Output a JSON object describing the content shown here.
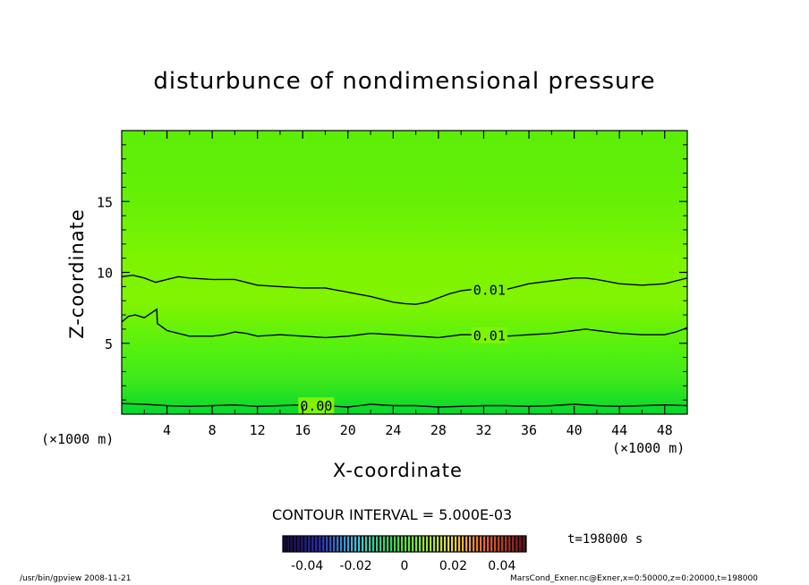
{
  "chart_data": {
    "type": "contour",
    "title": "disturbunce of nondimensional pressure",
    "xlabel": "X-coordinate",
    "ylabel": "Z-coordinate",
    "x_unit": "(×1000 m)",
    "y_unit": "(×1000 m)",
    "xlim": [
      0,
      50
    ],
    "ylim": [
      0,
      20
    ],
    "x_ticks": [
      4,
      8,
      12,
      16,
      20,
      24,
      28,
      32,
      36,
      40,
      44,
      48
    ],
    "y_ticks": [
      5,
      10,
      15
    ],
    "contours": [
      {
        "level": 0.01,
        "label": "0.01",
        "label_x": 32.5,
        "points": [
          [
            0,
            9.7
          ],
          [
            1,
            9.8
          ],
          [
            2,
            9.6
          ],
          [
            3,
            9.3
          ],
          [
            4,
            9.5
          ],
          [
            5,
            9.7
          ],
          [
            6,
            9.6
          ],
          [
            8,
            9.5
          ],
          [
            10,
            9.5
          ],
          [
            12,
            9.1
          ],
          [
            14,
            9.0
          ],
          [
            16,
            8.9
          ],
          [
            18,
            8.9
          ],
          [
            20,
            8.6
          ],
          [
            22,
            8.3
          ],
          [
            24,
            7.9
          ],
          [
            25,
            7.8
          ],
          [
            26,
            7.75
          ],
          [
            27,
            7.9
          ],
          [
            28,
            8.2
          ],
          [
            29,
            8.5
          ],
          [
            30,
            8.7
          ],
          [
            31,
            8.8
          ],
          [
            32,
            8.8
          ],
          [
            34,
            8.8
          ],
          [
            36,
            9.2
          ],
          [
            38,
            9.4
          ],
          [
            40,
            9.6
          ],
          [
            41,
            9.6
          ],
          [
            42,
            9.5
          ],
          [
            44,
            9.2
          ],
          [
            46,
            9.1
          ],
          [
            48,
            9.2
          ],
          [
            49,
            9.4
          ],
          [
            50,
            9.6
          ]
        ]
      },
      {
        "level": 0.01,
        "label": "0.01",
        "label_x": 32.5,
        "points": [
          [
            0,
            6.5
          ],
          [
            0.6,
            6.9
          ],
          [
            1.2,
            7.0
          ],
          [
            2,
            6.8
          ],
          [
            3.1,
            7.4
          ],
          [
            3.15,
            6.4
          ],
          [
            4,
            5.9
          ],
          [
            5,
            5.7
          ],
          [
            6,
            5.5
          ],
          [
            7,
            5.5
          ],
          [
            8,
            5.5
          ],
          [
            9,
            5.6
          ],
          [
            10,
            5.8
          ],
          [
            11,
            5.7
          ],
          [
            12,
            5.5
          ],
          [
            14,
            5.6
          ],
          [
            16,
            5.5
          ],
          [
            18,
            5.4
          ],
          [
            20,
            5.5
          ],
          [
            22,
            5.7
          ],
          [
            24,
            5.6
          ],
          [
            26,
            5.5
          ],
          [
            28,
            5.4
          ],
          [
            30,
            5.6
          ],
          [
            32,
            5.6
          ],
          [
            34,
            5.5
          ],
          [
            36,
            5.6
          ],
          [
            38,
            5.7
          ],
          [
            40,
            5.9
          ],
          [
            41,
            6.0
          ],
          [
            42,
            5.9
          ],
          [
            44,
            5.7
          ],
          [
            46,
            5.6
          ],
          [
            48,
            5.6
          ],
          [
            49,
            5.8
          ],
          [
            50,
            6.1
          ]
        ]
      },
      {
        "level": 0.0,
        "label": "0.00",
        "label_x": 17.2,
        "points": [
          [
            0,
            0.75
          ],
          [
            2,
            0.7
          ],
          [
            4,
            0.6
          ],
          [
            6,
            0.55
          ],
          [
            8,
            0.6
          ],
          [
            10,
            0.65
          ],
          [
            12,
            0.55
          ],
          [
            14,
            0.6
          ],
          [
            16,
            0.65
          ],
          [
            18,
            0.6
          ],
          [
            20,
            0.5
          ],
          [
            22,
            0.7
          ],
          [
            24,
            0.6
          ],
          [
            26,
            0.6
          ],
          [
            28,
            0.5
          ],
          [
            30,
            0.55
          ],
          [
            32,
            0.6
          ],
          [
            34,
            0.6
          ],
          [
            36,
            0.55
          ],
          [
            38,
            0.6
          ],
          [
            40,
            0.7
          ],
          [
            42,
            0.6
          ],
          [
            44,
            0.55
          ],
          [
            46,
            0.6
          ],
          [
            48,
            0.65
          ],
          [
            50,
            0.6
          ]
        ]
      }
    ],
    "colorbar": {
      "min": -0.05,
      "max": 0.05,
      "ticks": [
        "-0.04",
        "-0.02",
        "0",
        "0.02",
        "0.04"
      ],
      "tick_values": [
        -0.04,
        -0.02,
        0,
        0.02,
        0.04
      ]
    },
    "contour_interval_text": "CONTOUR INTERVAL = 5.000E-03",
    "time_text": "t=198000 s"
  },
  "footer": {
    "left": "/usr/bin/gpview  2008-11-21",
    "right": "MarsCond_Exner.nc@Exner,x=0:50000,z=0:20000,t=198000"
  }
}
